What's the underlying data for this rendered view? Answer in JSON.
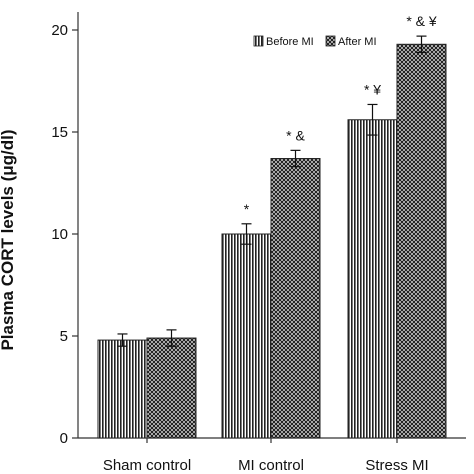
{
  "chart_data": {
    "type": "bar",
    "title": "",
    "xlabel": "",
    "ylabel": "Plasma CORT levels (μg/dl)",
    "ylim": [
      0,
      20
    ],
    "yticks": [
      0,
      5,
      10,
      15,
      20
    ],
    "categories": [
      "Sham control",
      "MI control",
      "Stress MI"
    ],
    "series": [
      {
        "name": "Before MI",
        "values": [
          4.8,
          10.0,
          15.6
        ],
        "errors": [
          0.3,
          0.5,
          0.75
        ],
        "annotations": [
          "",
          "*",
          "* ¥"
        ]
      },
      {
        "name": "After MI",
        "values": [
          4.9,
          13.7,
          19.3
        ],
        "errors": [
          0.4,
          0.4,
          0.4
        ],
        "annotations": [
          "",
          "* &",
          "* & ¥"
        ]
      }
    ],
    "legend": {
      "position": "top-right"
    }
  }
}
